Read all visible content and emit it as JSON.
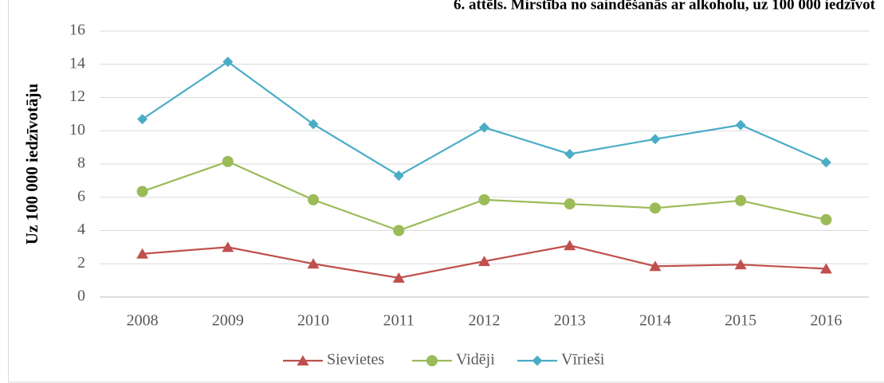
{
  "chart_data": {
    "type": "line",
    "title": "6. attēls. Mirstība no saindēšanās ar alkoholu, uz 100 000 iedzīvot",
    "ylabel": "Uz 100 000 iedzīvotāju",
    "categories": [
      "2008",
      "2009",
      "2010",
      "2011",
      "2012",
      "2013",
      "2014",
      "2015",
      "2016"
    ],
    "series": [
      {
        "name": "Sievietes",
        "color": "#c0504d",
        "marker": "triangle",
        "values": [
          2.6,
          3.0,
          2.0,
          1.15,
          2.15,
          3.1,
          1.85,
          1.95,
          1.7
        ]
      },
      {
        "name": "Vidēji",
        "color": "#9bbb59",
        "marker": "circle",
        "values": [
          6.35,
          8.15,
          5.85,
          4.0,
          5.85,
          5.6,
          5.35,
          5.8,
          4.65
        ]
      },
      {
        "name": "Vīrieši",
        "color": "#4bacc6",
        "marker": "diamond",
        "values": [
          10.7,
          14.15,
          10.4,
          7.3,
          10.2,
          8.6,
          9.5,
          10.35,
          8.1
        ]
      }
    ],
    "ylim": [
      0,
      16
    ],
    "yticks": [
      0,
      2,
      4,
      6,
      8,
      10,
      12,
      14,
      16
    ],
    "grid": true,
    "legend": "bottom"
  }
}
